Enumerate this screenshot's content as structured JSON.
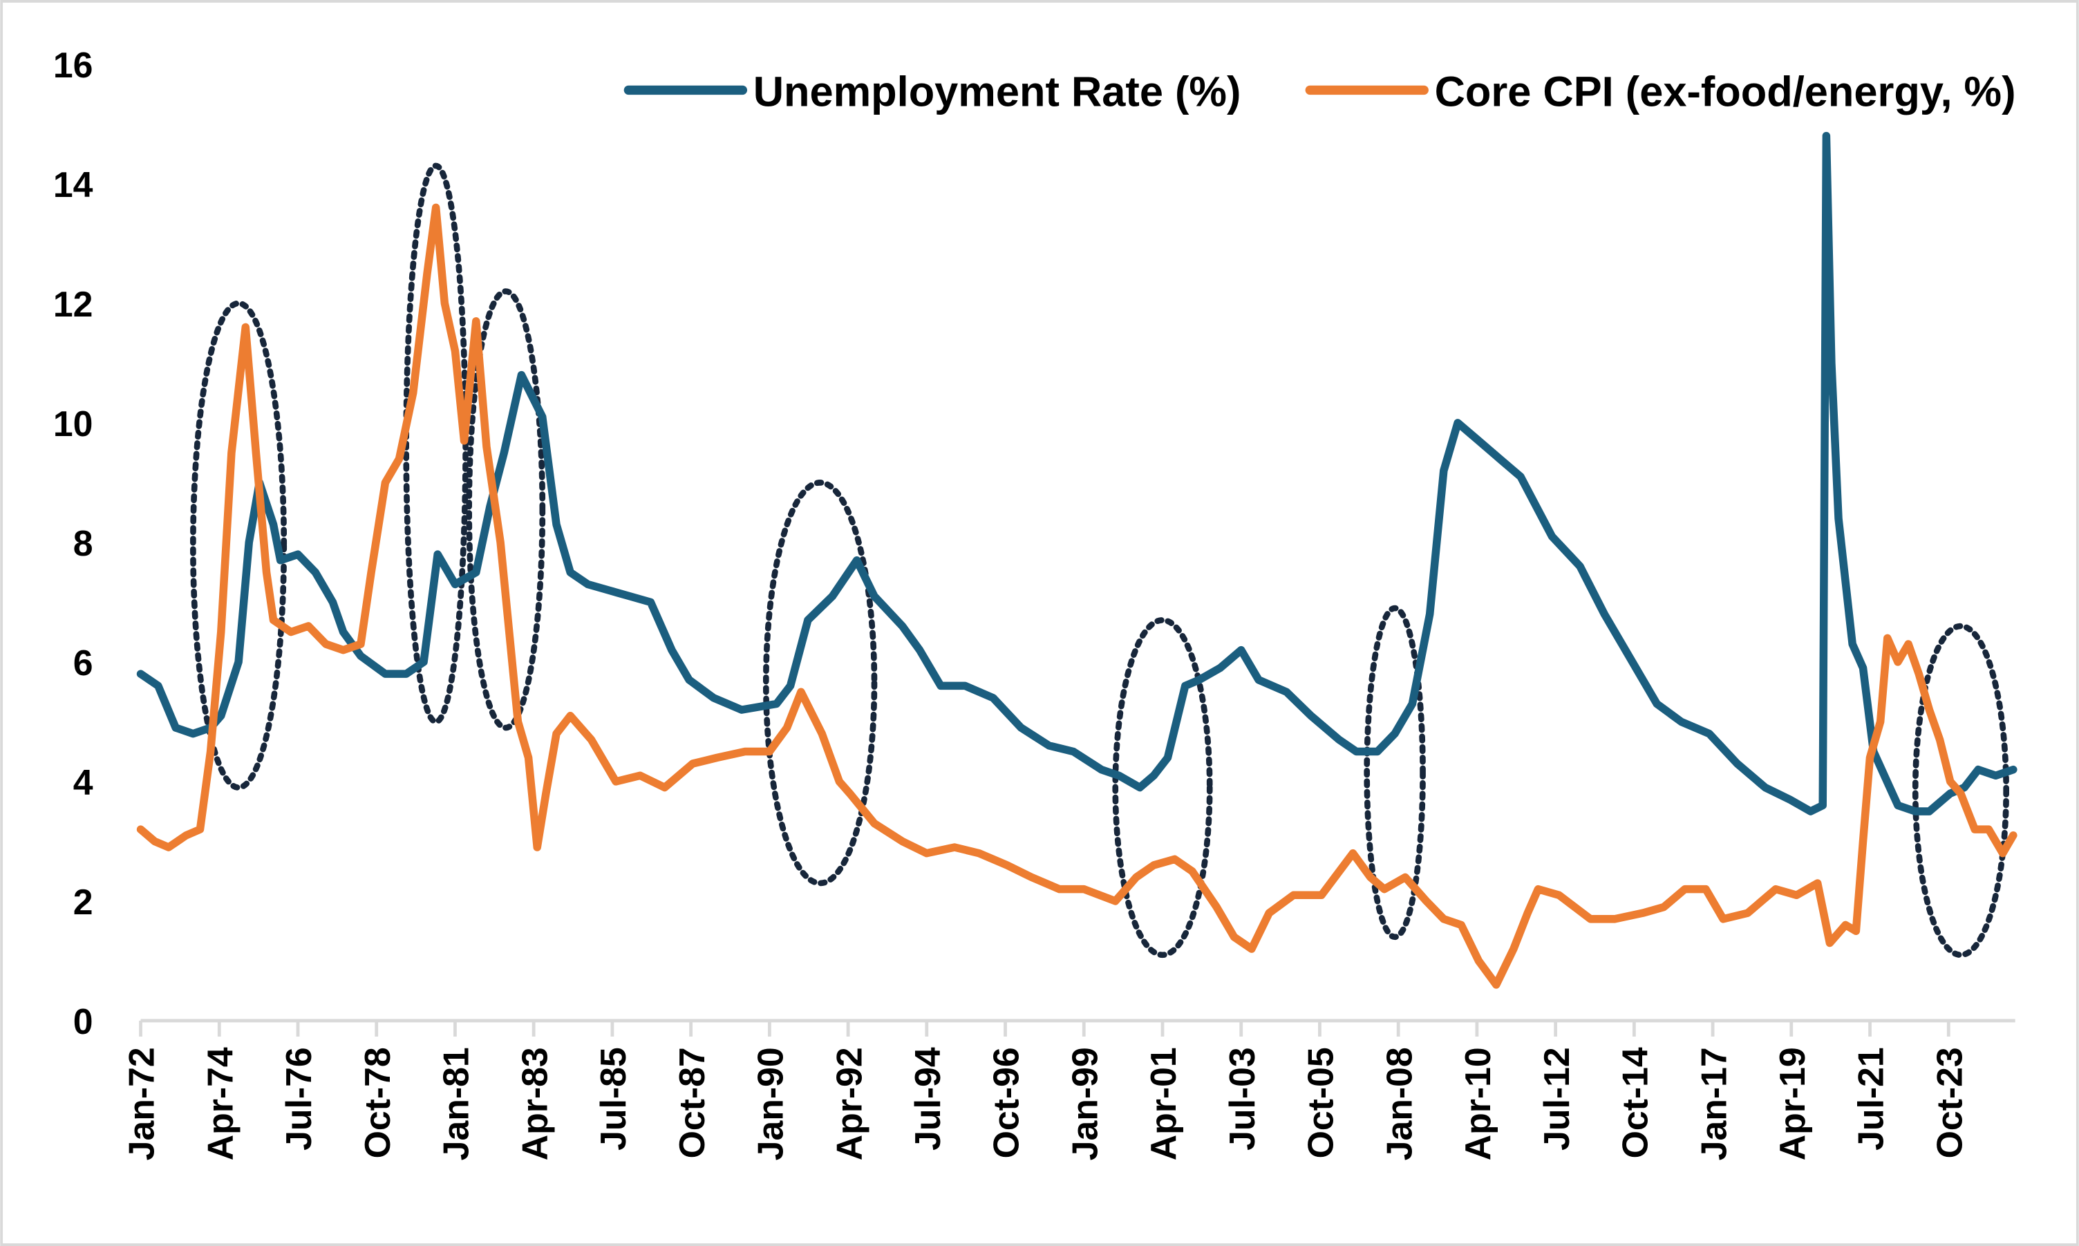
{
  "chart_data": {
    "type": "line",
    "title": "",
    "xlabel": "",
    "ylabel": "",
    "ylim": [
      0,
      16
    ],
    "yticks": [
      "0",
      "2",
      "4",
      "6",
      "8",
      "10",
      "12",
      "14",
      "16"
    ],
    "xlim_years": [
      1972.0,
      2025.6
    ],
    "xticks": [
      "Jan-72",
      "Apr-74",
      "Jul-76",
      "Oct-78",
      "Jan-81",
      "Apr-83",
      "Jul-85",
      "Oct-87",
      "Jan-90",
      "Apr-92",
      "Jul-94",
      "Oct-96",
      "Jan-99",
      "Apr-01",
      "Jul-03",
      "Oct-05",
      "Jan-08",
      "Apr-10",
      "Jul-12",
      "Oct-14",
      "Jan-17",
      "Apr-19",
      "Jul-21",
      "Oct-23"
    ],
    "grid": false,
    "legend_position": "top-right",
    "series": [
      {
        "name": "Unemployment Rate (%)",
        "color": "#1b5e7f",
        "points": [
          [
            1972.0,
            5.8
          ],
          [
            1972.5,
            5.6
          ],
          [
            1973.0,
            4.9
          ],
          [
            1973.5,
            4.8
          ],
          [
            1974.0,
            4.9
          ],
          [
            1974.3,
            5.1
          ],
          [
            1974.8,
            6.0
          ],
          [
            1975.1,
            8.0
          ],
          [
            1975.4,
            9.0
          ],
          [
            1975.8,
            8.3
          ],
          [
            1976.0,
            7.7
          ],
          [
            1976.5,
            7.8
          ],
          [
            1977.0,
            7.5
          ],
          [
            1977.5,
            7.0
          ],
          [
            1977.8,
            6.5
          ],
          [
            1978.3,
            6.1
          ],
          [
            1979.0,
            5.8
          ],
          [
            1979.6,
            5.8
          ],
          [
            1980.1,
            6.0
          ],
          [
            1980.5,
            7.8
          ],
          [
            1981.0,
            7.3
          ],
          [
            1981.6,
            7.5
          ],
          [
            1982.0,
            8.6
          ],
          [
            1982.4,
            9.5
          ],
          [
            1982.9,
            10.8
          ],
          [
            1983.5,
            10.1
          ],
          [
            1983.9,
            8.3
          ],
          [
            1984.3,
            7.5
          ],
          [
            1984.8,
            7.3
          ],
          [
            1985.4,
            7.2
          ],
          [
            1986.0,
            7.1
          ],
          [
            1986.6,
            7.0
          ],
          [
            1987.2,
            6.2
          ],
          [
            1987.7,
            5.7
          ],
          [
            1988.4,
            5.4
          ],
          [
            1989.2,
            5.2
          ],
          [
            1990.2,
            5.3
          ],
          [
            1990.6,
            5.6
          ],
          [
            1991.1,
            6.7
          ],
          [
            1991.8,
            7.1
          ],
          [
            1992.5,
            7.7
          ],
          [
            1993.0,
            7.1
          ],
          [
            1993.8,
            6.6
          ],
          [
            1994.3,
            6.2
          ],
          [
            1994.9,
            5.6
          ],
          [
            1995.6,
            5.6
          ],
          [
            1996.4,
            5.4
          ],
          [
            1997.2,
            4.9
          ],
          [
            1998.0,
            4.6
          ],
          [
            1998.7,
            4.5
          ],
          [
            1999.5,
            4.2
          ],
          [
            2000.0,
            4.1
          ],
          [
            2000.6,
            3.9
          ],
          [
            2001.0,
            4.1
          ],
          [
            2001.4,
            4.4
          ],
          [
            2001.9,
            5.6
          ],
          [
            2002.3,
            5.7
          ],
          [
            2002.9,
            5.9
          ],
          [
            2003.5,
            6.2
          ],
          [
            2004.0,
            5.7
          ],
          [
            2004.8,
            5.5
          ],
          [
            2005.5,
            5.1
          ],
          [
            2006.3,
            4.7
          ],
          [
            2006.8,
            4.5
          ],
          [
            2007.4,
            4.5
          ],
          [
            2007.9,
            4.8
          ],
          [
            2008.4,
            5.3
          ],
          [
            2008.9,
            6.8
          ],
          [
            2009.3,
            9.2
          ],
          [
            2009.7,
            10.0
          ],
          [
            2010.3,
            9.7
          ],
          [
            2010.9,
            9.4
          ],
          [
            2011.5,
            9.1
          ],
          [
            2012.4,
            8.1
          ],
          [
            2013.2,
            7.6
          ],
          [
            2013.9,
            6.8
          ],
          [
            2014.6,
            6.1
          ],
          [
            2015.4,
            5.3
          ],
          [
            2016.1,
            5.0
          ],
          [
            2016.9,
            4.8
          ],
          [
            2017.7,
            4.3
          ],
          [
            2018.5,
            3.9
          ],
          [
            2019.2,
            3.7
          ],
          [
            2019.8,
            3.5
          ],
          [
            2020.15,
            3.6
          ],
          [
            2020.25,
            14.8
          ],
          [
            2020.4,
            11.0
          ],
          [
            2020.6,
            8.4
          ],
          [
            2021.0,
            6.3
          ],
          [
            2021.3,
            5.9
          ],
          [
            2021.6,
            4.5
          ],
          [
            2022.3,
            3.6
          ],
          [
            2022.8,
            3.5
          ],
          [
            2023.2,
            3.5
          ],
          [
            2023.8,
            3.8
          ],
          [
            2024.2,
            3.9
          ],
          [
            2024.6,
            4.2
          ],
          [
            2025.1,
            4.1
          ],
          [
            2025.6,
            4.2
          ]
        ]
      },
      {
        "name": "Core CPI (ex-food/energy, %)",
        "color": "#ed7d31",
        "points": [
          [
            1972.0,
            3.2
          ],
          [
            1972.4,
            3.0
          ],
          [
            1972.8,
            2.9
          ],
          [
            1973.3,
            3.1
          ],
          [
            1973.7,
            3.2
          ],
          [
            1974.0,
            4.5
          ],
          [
            1974.3,
            6.5
          ],
          [
            1974.6,
            9.5
          ],
          [
            1975.0,
            11.6
          ],
          [
            1975.3,
            9.5
          ],
          [
            1975.6,
            7.5
          ],
          [
            1975.8,
            6.7
          ],
          [
            1976.3,
            6.5
          ],
          [
            1976.8,
            6.6
          ],
          [
            1977.3,
            6.3
          ],
          [
            1977.8,
            6.2
          ],
          [
            1978.3,
            6.3
          ],
          [
            1978.6,
            7.5
          ],
          [
            1979.0,
            9.0
          ],
          [
            1979.4,
            9.4
          ],
          [
            1979.8,
            10.5
          ],
          [
            1980.2,
            12.5
          ],
          [
            1980.45,
            13.6
          ],
          [
            1980.7,
            12.0
          ],
          [
            1981.0,
            11.2
          ],
          [
            1981.26,
            9.7
          ],
          [
            1981.6,
            11.7
          ],
          [
            1981.9,
            9.6
          ],
          [
            1982.3,
            8.0
          ],
          [
            1982.8,
            5.0
          ],
          [
            1983.1,
            4.4
          ],
          [
            1983.35,
            2.9
          ],
          [
            1983.6,
            3.8
          ],
          [
            1983.9,
            4.8
          ],
          [
            1984.3,
            5.1
          ],
          [
            1984.9,
            4.7
          ],
          [
            1985.6,
            4.0
          ],
          [
            1986.3,
            4.1
          ],
          [
            1987.0,
            3.9
          ],
          [
            1987.8,
            4.3
          ],
          [
            1988.5,
            4.4
          ],
          [
            1989.3,
            4.5
          ],
          [
            1990.0,
            4.5
          ],
          [
            1990.5,
            4.9
          ],
          [
            1990.9,
            5.5
          ],
          [
            1991.5,
            4.8
          ],
          [
            1992.0,
            4.0
          ],
          [
            1992.3,
            3.8
          ],
          [
            1993.0,
            3.3
          ],
          [
            1993.8,
            3.0
          ],
          [
            1994.5,
            2.8
          ],
          [
            1995.3,
            2.9
          ],
          [
            1996.0,
            2.8
          ],
          [
            1996.8,
            2.6
          ],
          [
            1997.5,
            2.4
          ],
          [
            1998.3,
            2.2
          ],
          [
            1999.0,
            2.2
          ],
          [
            1999.9,
            2.0
          ],
          [
            2000.5,
            2.4
          ],
          [
            2001.0,
            2.6
          ],
          [
            2001.6,
            2.7
          ],
          [
            2002.1,
            2.5
          ],
          [
            2002.8,
            1.9
          ],
          [
            2003.3,
            1.4
          ],
          [
            2003.8,
            1.2
          ],
          [
            2004.3,
            1.8
          ],
          [
            2005.0,
            2.1
          ],
          [
            2005.8,
            2.1
          ],
          [
            2006.7,
            2.8
          ],
          [
            2007.2,
            2.4
          ],
          [
            2007.6,
            2.2
          ],
          [
            2008.2,
            2.4
          ],
          [
            2008.8,
            2.0
          ],
          [
            2009.3,
            1.7
          ],
          [
            2009.8,
            1.6
          ],
          [
            2010.3,
            1.0
          ],
          [
            2010.8,
            0.6
          ],
          [
            2011.3,
            1.2
          ],
          [
            2011.7,
            1.8
          ],
          [
            2012.0,
            2.2
          ],
          [
            2012.6,
            2.1
          ],
          [
            2013.5,
            1.7
          ],
          [
            2014.2,
            1.7
          ],
          [
            2015.0,
            1.8
          ],
          [
            2015.6,
            1.9
          ],
          [
            2016.2,
            2.2
          ],
          [
            2016.8,
            2.2
          ],
          [
            2017.3,
            1.7
          ],
          [
            2018.0,
            1.8
          ],
          [
            2018.8,
            2.2
          ],
          [
            2019.4,
            2.1
          ],
          [
            2020.0,
            2.3
          ],
          [
            2020.35,
            1.3
          ],
          [
            2020.8,
            1.6
          ],
          [
            2021.1,
            1.5
          ],
          [
            2021.3,
            3.0
          ],
          [
            2021.5,
            4.4
          ],
          [
            2021.8,
            5.0
          ],
          [
            2022.0,
            6.4
          ],
          [
            2022.3,
            6.0
          ],
          [
            2022.6,
            6.3
          ],
          [
            2022.9,
            5.8
          ],
          [
            2023.2,
            5.2
          ],
          [
            2023.5,
            4.7
          ],
          [
            2023.8,
            4.0
          ],
          [
            2024.1,
            3.8
          ],
          [
            2024.5,
            3.2
          ],
          [
            2024.9,
            3.2
          ],
          [
            2025.3,
            2.8
          ],
          [
            2025.6,
            3.1
          ]
        ]
      }
    ],
    "highlights": [
      {
        "from_year": 1973.5,
        "to_year": 1976.1,
        "ymin": 3.9,
        "ymax": 12.0
      },
      {
        "from_year": 1979.6,
        "to_year": 1981.3,
        "ymin": 5.0,
        "ymax": 14.3
      },
      {
        "from_year": 1981.4,
        "to_year": 1983.5,
        "ymin": 4.9,
        "ymax": 12.2
      },
      {
        "from_year": 1989.9,
        "to_year": 1993.0,
        "ymin": 2.3,
        "ymax": 9.0
      },
      {
        "from_year": 1999.9,
        "to_year": 2002.6,
        "ymin": 1.1,
        "ymax": 6.7
      },
      {
        "from_year": 2007.1,
        "to_year": 2008.7,
        "ymin": 1.4,
        "ymax": 6.9
      },
      {
        "from_year": 2022.8,
        "to_year": 2025.4,
        "ymin": 1.1,
        "ymax": 6.6
      }
    ]
  }
}
